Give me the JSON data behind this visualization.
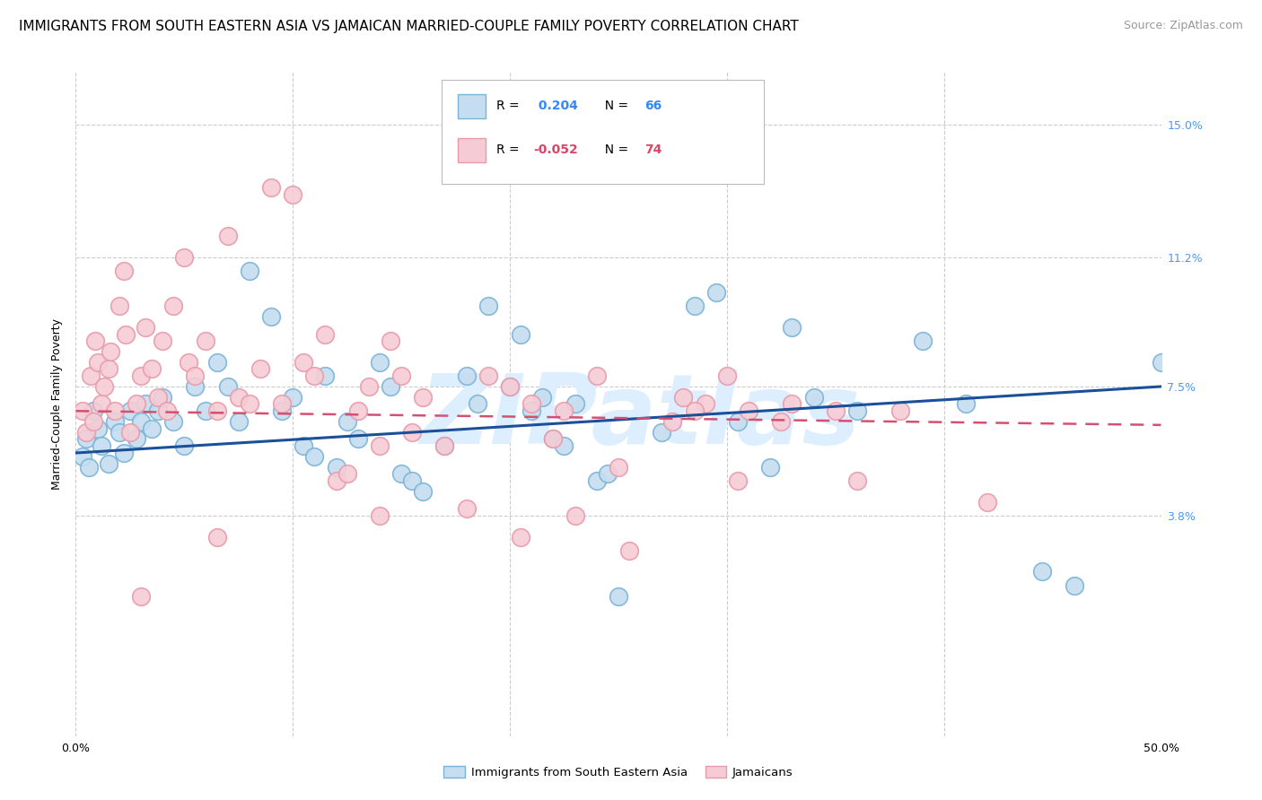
{
  "title": "IMMIGRANTS FROM SOUTH EASTERN ASIA VS JAMAICAN MARRIED-COUPLE FAMILY POVERTY CORRELATION CHART",
  "source": "Source: ZipAtlas.com",
  "ylabel": "Married-Couple Family Poverty",
  "ytick_labels": [
    "3.8%",
    "7.5%",
    "11.2%",
    "15.0%"
  ],
  "ytick_values": [
    3.8,
    7.5,
    11.2,
    15.0
  ],
  "xlim": [
    0.0,
    50.0
  ],
  "ylim": [
    -2.5,
    16.5
  ],
  "watermark": "ZIPatlas",
  "blue_scatter": [
    [
      0.3,
      5.5
    ],
    [
      0.5,
      6.0
    ],
    [
      0.6,
      5.2
    ],
    [
      0.8,
      6.8
    ],
    [
      1.0,
      6.3
    ],
    [
      1.2,
      5.8
    ],
    [
      1.5,
      5.3
    ],
    [
      1.8,
      6.5
    ],
    [
      2.0,
      6.2
    ],
    [
      2.2,
      5.6
    ],
    [
      2.5,
      6.8
    ],
    [
      2.8,
      6.0
    ],
    [
      3.0,
      6.5
    ],
    [
      3.2,
      7.0
    ],
    [
      3.5,
      6.3
    ],
    [
      3.8,
      6.8
    ],
    [
      4.0,
      7.2
    ],
    [
      4.5,
      6.5
    ],
    [
      5.0,
      5.8
    ],
    [
      5.5,
      7.5
    ],
    [
      6.0,
      6.8
    ],
    [
      6.5,
      8.2
    ],
    [
      7.0,
      7.5
    ],
    [
      7.5,
      6.5
    ],
    [
      8.0,
      10.8
    ],
    [
      9.0,
      9.5
    ],
    [
      9.5,
      6.8
    ],
    [
      10.0,
      7.2
    ],
    [
      10.5,
      5.8
    ],
    [
      11.0,
      5.5
    ],
    [
      11.5,
      7.8
    ],
    [
      12.0,
      5.2
    ],
    [
      12.5,
      6.5
    ],
    [
      13.0,
      6.0
    ],
    [
      14.0,
      8.2
    ],
    [
      14.5,
      7.5
    ],
    [
      15.0,
      5.0
    ],
    [
      15.5,
      4.8
    ],
    [
      16.0,
      4.5
    ],
    [
      17.0,
      5.8
    ],
    [
      18.0,
      7.8
    ],
    [
      18.5,
      7.0
    ],
    [
      19.0,
      9.8
    ],
    [
      20.0,
      7.5
    ],
    [
      20.5,
      9.0
    ],
    [
      21.0,
      6.8
    ],
    [
      21.5,
      7.2
    ],
    [
      22.0,
      6.0
    ],
    [
      22.5,
      5.8
    ],
    [
      23.0,
      7.0
    ],
    [
      24.0,
      4.8
    ],
    [
      24.5,
      5.0
    ],
    [
      25.0,
      1.5
    ],
    [
      27.0,
      6.2
    ],
    [
      28.5,
      9.8
    ],
    [
      29.5,
      10.2
    ],
    [
      30.5,
      6.5
    ],
    [
      32.0,
      5.2
    ],
    [
      33.0,
      9.2
    ],
    [
      34.0,
      7.2
    ],
    [
      36.0,
      6.8
    ],
    [
      39.0,
      8.8
    ],
    [
      41.0,
      7.0
    ],
    [
      44.5,
      2.2
    ],
    [
      46.0,
      1.8
    ],
    [
      50.0,
      8.2
    ]
  ],
  "pink_scatter": [
    [
      0.3,
      6.8
    ],
    [
      0.5,
      6.2
    ],
    [
      0.7,
      7.8
    ],
    [
      0.8,
      6.5
    ],
    [
      0.9,
      8.8
    ],
    [
      1.0,
      8.2
    ],
    [
      1.2,
      7.0
    ],
    [
      1.3,
      7.5
    ],
    [
      1.5,
      8.0
    ],
    [
      1.6,
      8.5
    ],
    [
      1.8,
      6.8
    ],
    [
      2.0,
      9.8
    ],
    [
      2.2,
      10.8
    ],
    [
      2.3,
      9.0
    ],
    [
      2.5,
      6.2
    ],
    [
      2.8,
      7.0
    ],
    [
      3.0,
      7.8
    ],
    [
      3.2,
      9.2
    ],
    [
      3.5,
      8.0
    ],
    [
      3.8,
      7.2
    ],
    [
      4.0,
      8.8
    ],
    [
      4.2,
      6.8
    ],
    [
      4.5,
      9.8
    ],
    [
      5.0,
      11.2
    ],
    [
      5.2,
      8.2
    ],
    [
      5.5,
      7.8
    ],
    [
      6.0,
      8.8
    ],
    [
      6.5,
      6.8
    ],
    [
      7.0,
      11.8
    ],
    [
      7.5,
      7.2
    ],
    [
      8.0,
      7.0
    ],
    [
      8.5,
      8.0
    ],
    [
      9.0,
      13.2
    ],
    [
      9.5,
      7.0
    ],
    [
      10.0,
      13.0
    ],
    [
      10.5,
      8.2
    ],
    [
      11.0,
      7.8
    ],
    [
      11.5,
      9.0
    ],
    [
      12.0,
      4.8
    ],
    [
      12.5,
      5.0
    ],
    [
      13.0,
      6.8
    ],
    [
      13.5,
      7.5
    ],
    [
      14.0,
      5.8
    ],
    [
      14.5,
      8.8
    ],
    [
      15.0,
      7.8
    ],
    [
      15.5,
      6.2
    ],
    [
      16.0,
      7.2
    ],
    [
      17.0,
      5.8
    ],
    [
      18.0,
      4.0
    ],
    [
      19.0,
      7.8
    ],
    [
      20.0,
      7.5
    ],
    [
      21.0,
      7.0
    ],
    [
      22.0,
      6.0
    ],
    [
      22.5,
      6.8
    ],
    [
      23.0,
      3.8
    ],
    [
      24.0,
      7.8
    ],
    [
      25.0,
      5.2
    ],
    [
      28.0,
      7.2
    ],
    [
      29.0,
      7.0
    ],
    [
      30.0,
      7.8
    ],
    [
      31.0,
      6.8
    ],
    [
      33.0,
      7.0
    ],
    [
      35.0,
      6.8
    ],
    [
      36.0,
      4.8
    ],
    [
      38.0,
      6.8
    ],
    [
      3.0,
      1.5
    ],
    [
      6.5,
      3.2
    ],
    [
      14.0,
      3.8
    ],
    [
      20.5,
      3.2
    ],
    [
      25.5,
      2.8
    ],
    [
      27.5,
      6.5
    ],
    [
      28.5,
      6.8
    ],
    [
      30.5,
      4.8
    ],
    [
      32.5,
      6.5
    ],
    [
      42.0,
      4.2
    ]
  ],
  "blue_line": {
    "x0": 0.0,
    "y0": 5.6,
    "x1": 50.0,
    "y1": 7.5
  },
  "pink_line": {
    "x0": 0.0,
    "y0": 6.8,
    "x1": 50.0,
    "y1": 6.4
  },
  "blue_dot_color": "#7ab3d8",
  "blue_fill_color": "#c5ddf0",
  "pink_dot_color": "#e89aaa",
  "pink_fill_color": "#f5ccd5",
  "blue_line_color": "#1a4f99",
  "pink_line_color": "#d45070",
  "grid_color": "#cccccc",
  "watermark_color": "#ddeeff",
  "title_fontsize": 11,
  "axis_label_fontsize": 9,
  "tick_fontsize": 9,
  "source_fontsize": 9,
  "scatter_size": 200
}
